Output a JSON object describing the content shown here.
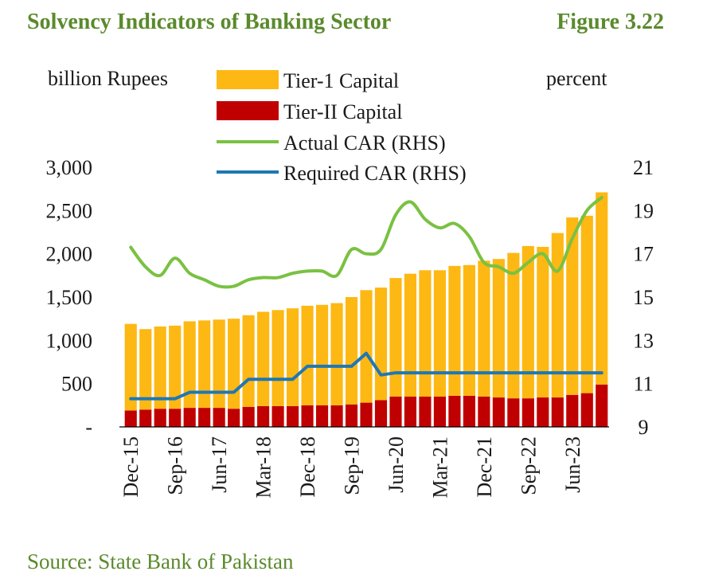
{
  "figure": {
    "title": "Solvency Indicators of Banking Sector",
    "number": "Figure 3.22",
    "source": "Source: State Bank of Pakistan"
  },
  "chart_data": {
    "type": "bar",
    "stacked": true,
    "y_left_label": "billion Rupees",
    "y_right_label": "percent",
    "y_left_range": [
      0,
      3000
    ],
    "y_left_ticks": [
      "-",
      "500",
      "1,000",
      "1,500",
      "2,000",
      "2,500",
      "3,000"
    ],
    "y_left_tick_values": [
      0,
      500,
      1000,
      1500,
      2000,
      2500,
      3000
    ],
    "y_right_range": [
      9,
      21
    ],
    "y_right_ticks": [
      "9",
      "11",
      "13",
      "15",
      "17",
      "19",
      "21"
    ],
    "y_right_tick_values": [
      9,
      11,
      13,
      15,
      17,
      19,
      21
    ],
    "legend_position": "top-center",
    "categories": [
      "Dec-15",
      "Mar-16",
      "Jun-16",
      "Sep-16",
      "Dec-16",
      "Mar-17",
      "Jun-17",
      "Sep-17",
      "Dec-17",
      "Mar-18",
      "Jun-18",
      "Sep-18",
      "Dec-18",
      "Mar-19",
      "Jun-19",
      "Sep-19",
      "Dec-19",
      "Mar-20",
      "Jun-20",
      "Sep-20",
      "Dec-20",
      "Mar-21",
      "Jun-21",
      "Sep-21",
      "Dec-21",
      "Mar-22",
      "Jun-22",
      "Sep-22",
      "Dec-22",
      "Mar-23",
      "Jun-23",
      "Sep-23",
      "Dec-23"
    ],
    "x_tick_labels": [
      "Dec-15",
      "Sep-16",
      "Jun-17",
      "Mar-18",
      "Dec-18",
      "Sep-19",
      "Jun-20",
      "Mar-21",
      "Dec-21",
      "Sep-22",
      "Jun-23"
    ],
    "bar_series": [
      {
        "name": "Tier-1 Capital",
        "color": "#FDB813",
        "values": [
          1000,
          930,
          950,
          960,
          1000,
          1010,
          1020,
          1040,
          1060,
          1090,
          1110,
          1130,
          1150,
          1160,
          1180,
          1240,
          1300,
          1300,
          1370,
          1420,
          1460,
          1460,
          1500,
          1510,
          1570,
          1600,
          1680,
          1760,
          1740,
          1900,
          2050,
          2050,
          2220
        ]
      },
      {
        "name": "Tier-II Capital",
        "color": "#C00000",
        "values": [
          190,
          200,
          210,
          210,
          220,
          220,
          220,
          210,
          230,
          240,
          240,
          240,
          250,
          250,
          250,
          260,
          280,
          310,
          350,
          350,
          350,
          350,
          360,
          360,
          350,
          340,
          330,
          330,
          340,
          340,
          370,
          390,
          490
        ]
      }
    ],
    "line_series": [
      {
        "name": "Actual CAR (RHS)",
        "color": "#7AC142",
        "values": [
          17.3,
          16.4,
          16.0,
          16.8,
          16.1,
          15.8,
          15.5,
          15.5,
          15.8,
          15.9,
          15.9,
          16.1,
          16.2,
          16.2,
          16.0,
          17.2,
          17.0,
          17.2,
          18.8,
          19.4,
          18.6,
          18.2,
          18.4,
          17.8,
          16.6,
          16.4,
          16.1,
          16.6,
          17.0,
          16.2,
          17.7,
          19.0,
          19.6
        ]
      },
      {
        "name": "Required CAR (RHS)",
        "color": "#1F77B4",
        "values": [
          10.3,
          10.3,
          10.3,
          10.3,
          10.6,
          10.6,
          10.6,
          10.6,
          11.2,
          11.2,
          11.2,
          11.2,
          11.8,
          11.8,
          11.8,
          11.8,
          12.4,
          11.4,
          11.5,
          11.5,
          11.5,
          11.5,
          11.5,
          11.5,
          11.5,
          11.5,
          11.5,
          11.5,
          11.5,
          11.5,
          11.5,
          11.5,
          11.5
        ]
      }
    ]
  }
}
